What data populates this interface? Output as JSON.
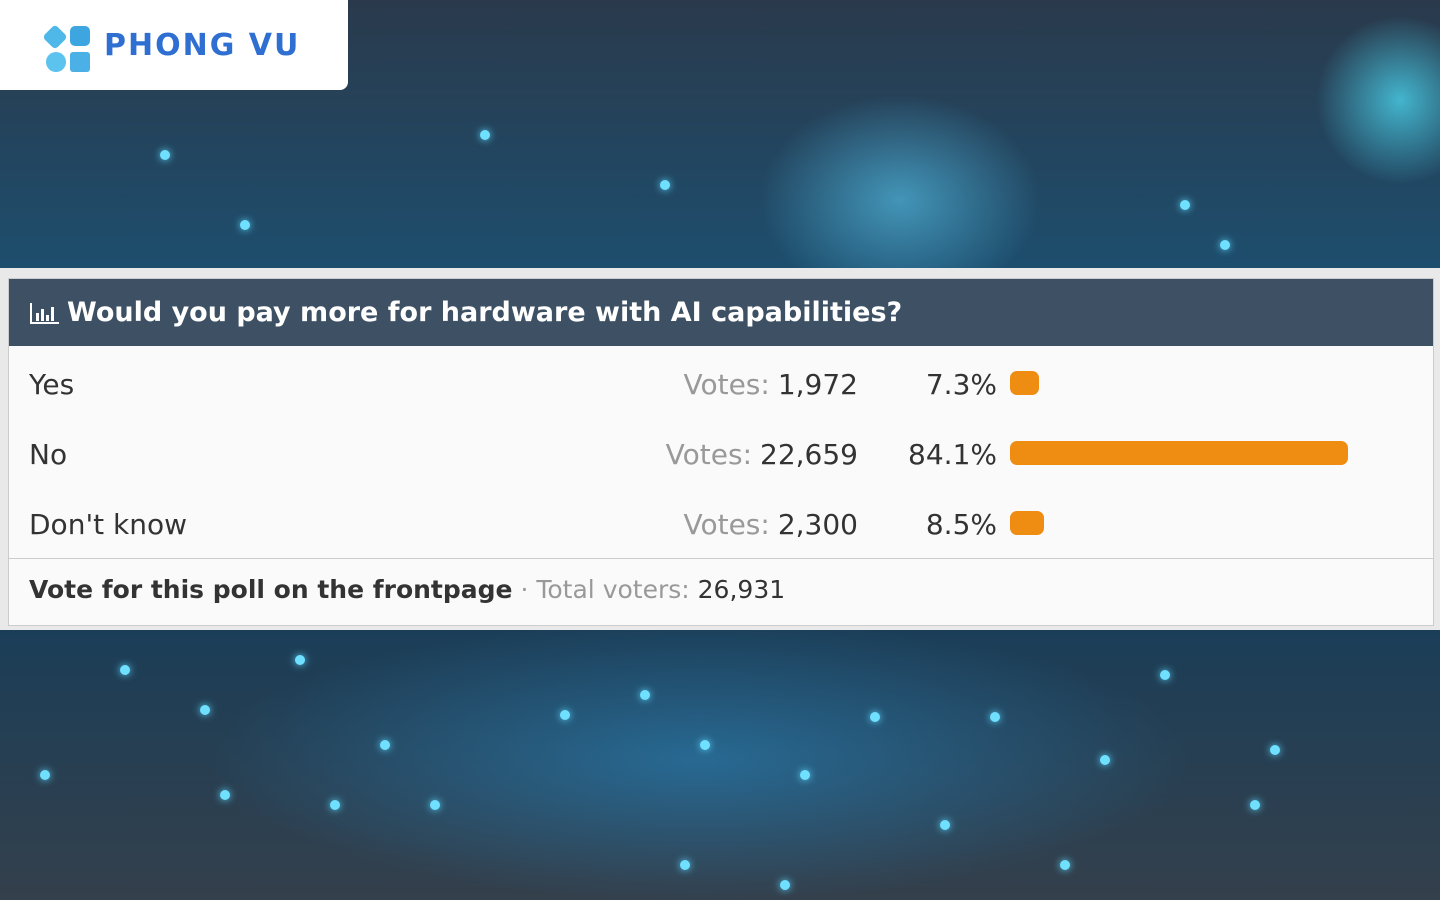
{
  "logo": {
    "text": "PHONG VU"
  },
  "poll": {
    "title": "Would you pay more for hardware with AI capabilities?",
    "votes_label": "Votes:",
    "options": [
      {
        "label": "Yes",
        "votes": "1,972",
        "percent": 7.3,
        "percent_label": "7.3%"
      },
      {
        "label": "No",
        "votes": "22,659",
        "percent": 84.1,
        "percent_label": "84.1%"
      },
      {
        "label": "Don't know",
        "votes": "2,300",
        "percent": 8.5,
        "percent_label": "8.5%"
      }
    ],
    "footer": {
      "link": "Vote for this poll on the frontpage",
      "separator": "·",
      "total_label": "Total voters:",
      "total": "26,931"
    }
  }
}
